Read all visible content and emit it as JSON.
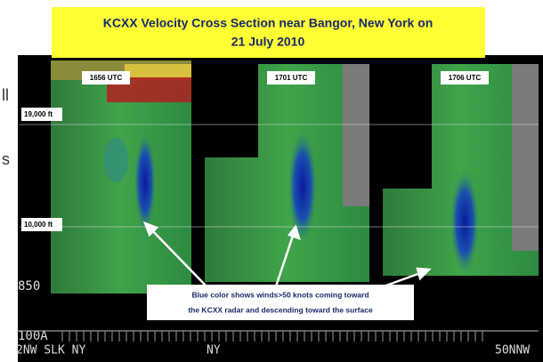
{
  "title_lines": [
    "KCXX Velocity Cross Section near Bangor, New York on",
    "21 July 2010"
  ],
  "panels": [
    {
      "label": "1656 UTC"
    },
    {
      "label": "1701 UTC"
    },
    {
      "label": "1706 UTC"
    }
  ],
  "altitude_labels": [
    "19,000 ft",
    "10,000 ft"
  ],
  "level_labels": [
    "850",
    "100A"
  ],
  "bottom_labels": [
    "2NW SLK NY",
    "NY",
    "50NNW"
  ],
  "annotation_lines": [
    "Blue color shows winds>50 knots coming toward",
    "the KCXX radar and descending toward the surface"
  ],
  "edge_text": [
    "ll",
    "s"
  ]
}
